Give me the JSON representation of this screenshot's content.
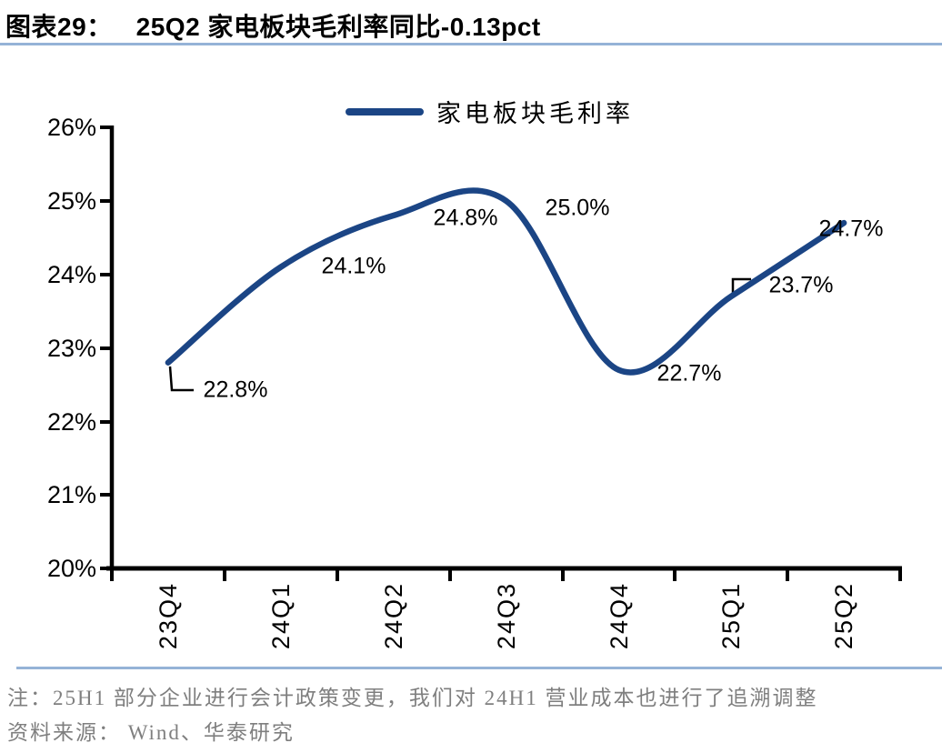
{
  "figure": {
    "label": "图表29：",
    "title": "25Q2 家电板块毛利率同比-0.13pct"
  },
  "legend": {
    "series_label": "家电板块毛利率"
  },
  "chart_data": {
    "type": "line",
    "title": "25Q2 家电板块毛利率同比-0.13pct",
    "categories": [
      "23Q4",
      "24Q1",
      "24Q2",
      "24Q3",
      "24Q4",
      "25Q1",
      "25Q2"
    ],
    "series": [
      {
        "name": "家电板块毛利率",
        "values": [
          22.8,
          24.1,
          24.8,
          25.0,
          22.7,
          23.7,
          24.7
        ]
      }
    ],
    "data_labels": [
      "22.8%",
      "24.1%",
      "24.8%",
      "25.0%",
      "22.7%",
      "23.7%",
      "24.7%"
    ],
    "ytick_labels": [
      "26%",
      "25%",
      "24%",
      "23%",
      "22%",
      "21%",
      "20%"
    ],
    "ylim": [
      20,
      26
    ],
    "unit": "%",
    "smooth": true,
    "grid": false,
    "legend_position": "top",
    "line_color": "#1B4585"
  },
  "notes": {
    "note": "注：25H1 部分企业进行会计政策变更，我们对 24H1 营业成本也进行了追溯调整",
    "source": "资料来源： Wind、华泰研究"
  },
  "colors": {
    "accent_line": "#1B4585",
    "divider": "#95B3D7",
    "note_text": "#7F7F7F",
    "axis": "#000000"
  }
}
